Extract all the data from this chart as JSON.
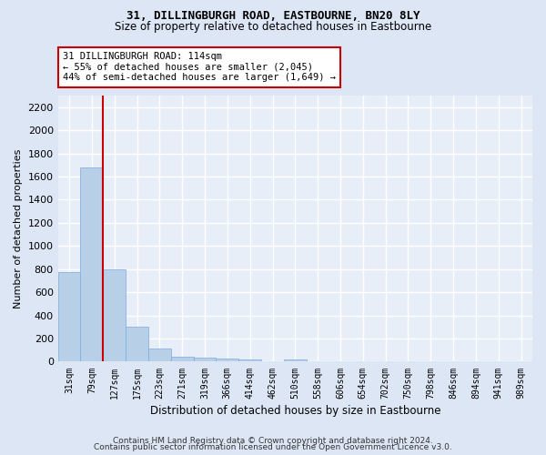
{
  "title": "31, DILLINGBURGH ROAD, EASTBOURNE, BN20 8LY",
  "subtitle": "Size of property relative to detached houses in Eastbourne",
  "xlabel": "Distribution of detached houses by size in Eastbourne",
  "ylabel": "Number of detached properties",
  "footer1": "Contains HM Land Registry data © Crown copyright and database right 2024.",
  "footer2": "Contains public sector information licensed under the Open Government Licence v3.0.",
  "bar_labels": [
    "31sqm",
    "79sqm",
    "127sqm",
    "175sqm",
    "223sqm",
    "271sqm",
    "319sqm",
    "366sqm",
    "414sqm",
    "462sqm",
    "510sqm",
    "558sqm",
    "606sqm",
    "654sqm",
    "702sqm",
    "750sqm",
    "798sqm",
    "846sqm",
    "894sqm",
    "941sqm",
    "989sqm"
  ],
  "bar_values": [
    775,
    1680,
    795,
    300,
    110,
    40,
    32,
    25,
    22,
    0,
    22,
    0,
    0,
    0,
    0,
    0,
    0,
    0,
    0,
    0,
    0
  ],
  "bar_color": "#b8cfe8",
  "bar_edge_color": "#7aabe0",
  "ylim": [
    0,
    2300
  ],
  "yticks": [
    0,
    200,
    400,
    600,
    800,
    1000,
    1200,
    1400,
    1600,
    1800,
    2000,
    2200
  ],
  "red_line_x": 1.5,
  "annotation_line1": "31 DILLINGBURGH ROAD: 114sqm",
  "annotation_line2": "← 55% of detached houses are smaller (2,045)",
  "annotation_line3": "44% of semi-detached houses are larger (1,649) →",
  "annotation_box_color": "#ffffff",
  "annotation_box_edge": "#cc0000",
  "bg_color": "#dce6f5",
  "plot_bg_color": "#e8eef8",
  "grid_color": "#ffffff",
  "title_fontsize": 9,
  "subtitle_fontsize": 8.5
}
